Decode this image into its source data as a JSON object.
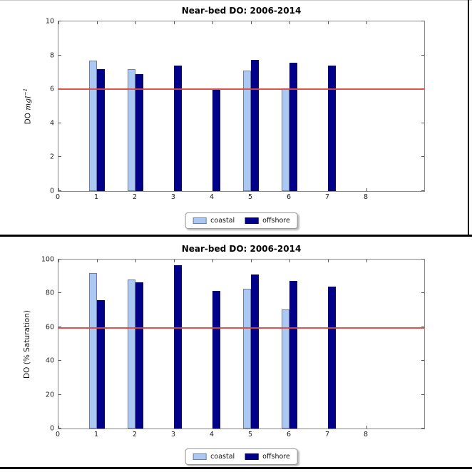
{
  "colors": {
    "coastal": "#aac8f2",
    "offshore": "#00008b",
    "threshold_line": "#e0453c",
    "spine": "#888888",
    "page_border": "#000000"
  },
  "legend": {
    "items": [
      {
        "label": "coastal",
        "color_key": "coastal"
      },
      {
        "label": "offshore",
        "color_key": "offshore"
      }
    ]
  },
  "chart_data": [
    {
      "type": "bar",
      "title": "Near-bed DO: 2006-2014",
      "ylabel": "DO mgl⁻¹",
      "ylabel_parts": {
        "prefix": "DO ",
        "math_italic": "mgl",
        "superscript": "−1"
      },
      "xlabel": "",
      "xlim": [
        0,
        9.5
      ],
      "ylim": [
        0,
        10
      ],
      "xticks": [
        0,
        1,
        2,
        3,
        4,
        5,
        6,
        7,
        8
      ],
      "yticks": [
        0,
        2,
        4,
        6,
        8,
        10
      ],
      "grid": false,
      "threshold": 6.0,
      "bar_width": 0.2,
      "categories": [
        1,
        2,
        3,
        4,
        5,
        6,
        7
      ],
      "series": [
        {
          "name": "coastal",
          "offset": -0.1,
          "values": [
            7.7,
            7.2,
            null,
            null,
            7.1,
            6.05,
            null
          ]
        },
        {
          "name": "offshore",
          "offset": 0.1,
          "values": [
            7.2,
            6.9,
            7.4,
            5.95,
            7.75,
            7.55,
            7.4
          ]
        }
      ],
      "legend_position": "below-center",
      "legend_labels": [
        "coastal",
        "offshore"
      ]
    },
    {
      "type": "bar",
      "title": "Near-bed DO: 2006-2014",
      "ylabel": "DO (% Saturation)",
      "xlabel": "",
      "xlim": [
        0,
        9.5
      ],
      "ylim": [
        0,
        100
      ],
      "xticks": [
        0,
        1,
        2,
        3,
        4,
        5,
        6,
        7,
        8
      ],
      "yticks": [
        0,
        20,
        40,
        60,
        80,
        100
      ],
      "grid": false,
      "threshold": 59.5,
      "bar_width": 0.2,
      "categories": [
        1,
        2,
        3,
        4,
        5,
        6,
        7
      ],
      "series": [
        {
          "name": "coastal",
          "offset": -0.1,
          "values": [
            92,
            88,
            null,
            null,
            82.5,
            70.5,
            null
          ]
        },
        {
          "name": "offshore",
          "offset": 0.1,
          "values": [
            76,
            86.5,
            96.5,
            81.5,
            91,
            87.5,
            84
          ]
        }
      ],
      "legend_position": "below-center",
      "legend_labels": [
        "coastal",
        "offshore"
      ]
    }
  ]
}
